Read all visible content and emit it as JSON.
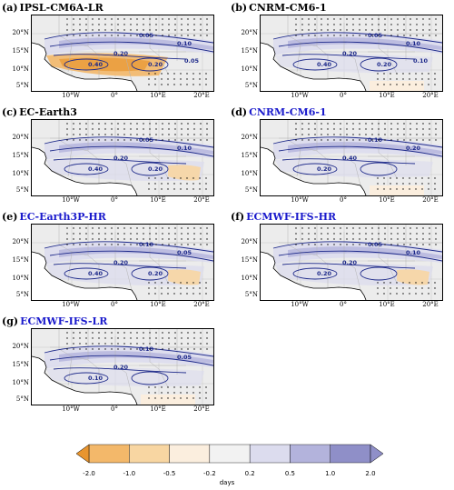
{
  "chart_data": {
    "type": "map",
    "colorbar": {
      "levels": [
        "-2.0",
        "-1.0",
        "-0.5",
        "-0.2",
        "0.2",
        "0.5",
        "1.0",
        "2.0"
      ],
      "label": "days",
      "colors": [
        "#e8952f",
        "#f3b86a",
        "#f8d6a2",
        "#fbeede",
        "#f2f2f2",
        "#dcdcee",
        "#b3b3dc",
        "#8f8fc8"
      ]
    },
    "lat_ticks": [
      "20°N",
      "15°N",
      "10°N",
      "5°N"
    ],
    "lon_ticks": [
      "10°W",
      "0°",
      "10°E",
      "20°E"
    ],
    "panels": [
      {
        "label": "(a)",
        "model": "IPSL-CM6A-LR",
        "model_color": "#000000",
        "contours": [
          "0.05",
          "0.10",
          "0.20",
          "0.40",
          "0.20",
          "0.05"
        ],
        "pattern": "negative"
      },
      {
        "label": "(b)",
        "model": "CNRM-CM6-1",
        "model_color": "#000000",
        "contours": [
          "0.05",
          "0.10",
          "0.20",
          "0.40",
          "0.20",
          "0.10"
        ],
        "pattern": "positive"
      },
      {
        "label": "(c)",
        "model": "EC-Earth3",
        "model_color": "#000000",
        "contours": [
          "0.05",
          "0.10",
          "0.20",
          "0.40",
          "0.20"
        ],
        "pattern": "mixed"
      },
      {
        "label": "(d)",
        "model": "CNRM-CM6-1",
        "model_color": "#1a1acc",
        "contours": [
          "0.10",
          "0.20",
          "0.40",
          "0.20"
        ],
        "pattern": "positive"
      },
      {
        "label": "(e)",
        "model": "EC-Earth3P-HR",
        "model_color": "#1a1acc",
        "contours": [
          "0.10",
          "0.05",
          "0.20",
          "0.40",
          "0.20"
        ],
        "pattern": "mixed"
      },
      {
        "label": "(f)",
        "model": "ECMWF-IFS-HR",
        "model_color": "#1a1acc",
        "contours": [
          "0.05",
          "0.10",
          "0.20",
          "0.20"
        ],
        "pattern": "mixed"
      },
      {
        "label": "(g)",
        "model": "ECMWF-IFS-LR",
        "model_color": "#1a1acc",
        "contours": [
          "0.10",
          "0.05",
          "0.20",
          "0.10"
        ],
        "pattern": "positive"
      }
    ]
  }
}
